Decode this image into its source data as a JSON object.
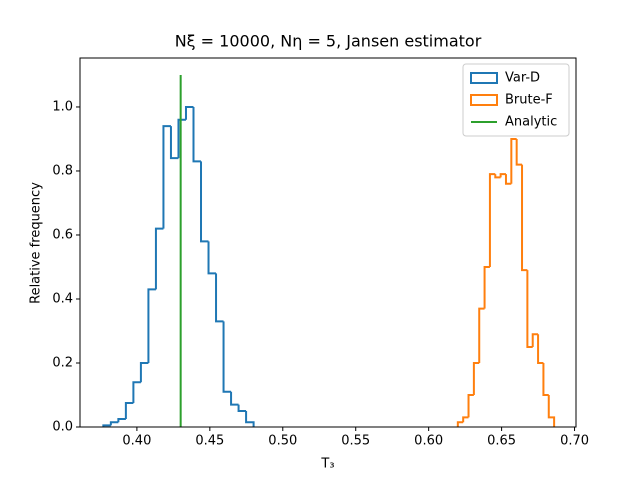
{
  "chart_data": {
    "type": "step-histogram",
    "title": "Nξ = 10000, Nη = 5, Jansen estimator",
    "xlabel": "T₃",
    "ylabel": "Relative frequency",
    "xlim": [
      0.361,
      0.701
    ],
    "ylim": [
      0,
      1.153
    ],
    "xticks": [
      {
        "value": 0.4,
        "label": "0.40"
      },
      0.45,
      {
        "value": 0.5,
        "label": "0.50"
      },
      0.55,
      {
        "value": 0.6,
        "label": "0.60"
      },
      0.65,
      {
        "value": 0.7,
        "label": "0.70"
      }
    ],
    "yticks": [
      {
        "value": 0,
        "label": "0.0"
      },
      0.2,
      0.4,
      0.6,
      0.8,
      {
        "value": 1,
        "label": "1.0"
      }
    ],
    "legend": "upper right",
    "series": [
      {
        "name": "Var-D",
        "color": "#1f77b4",
        "bins": [
          0.377,
          0.38215,
          0.3873,
          0.39245,
          0.3976,
          0.40275,
          0.4079,
          0.41305,
          0.4182,
          0.42335,
          0.4285,
          0.43365,
          0.4388,
          0.44395,
          0.4491,
          0.45425,
          0.4594,
          0.46455,
          0.4697,
          0.47485,
          0.48
        ],
        "values": [
          0.005,
          0.015,
          0.025,
          0.075,
          0.14,
          0.2,
          0.43,
          0.62,
          0.94,
          0.84,
          0.96,
          1.0,
          0.83,
          0.58,
          0.48,
          0.33,
          0.11,
          0.07,
          0.05,
          0.015
        ]
      },
      {
        "name": "Brute-F",
        "color": "#ff7f0e",
        "bins": [
          0.62,
          0.62367,
          0.62733,
          0.631,
          0.63467,
          0.63833,
          0.642,
          0.64567,
          0.64933,
          0.653,
          0.65667,
          0.66033,
          0.664,
          0.66767,
          0.67133,
          0.675,
          0.67867,
          0.68233,
          0.686
        ],
        "values": [
          0.015,
          0.03,
          0.1,
          0.2,
          0.37,
          0.5,
          0.79,
          0.78,
          0.79,
          0.76,
          0.9,
          0.82,
          0.49,
          0.25,
          0.29,
          0.2,
          0.1,
          0.03
        ]
      },
      {
        "name": "Analytic",
        "color": "#2ca02c",
        "x": [
          0.43,
          0.43
        ],
        "values": [
          0,
          1.1
        ]
      }
    ]
  }
}
